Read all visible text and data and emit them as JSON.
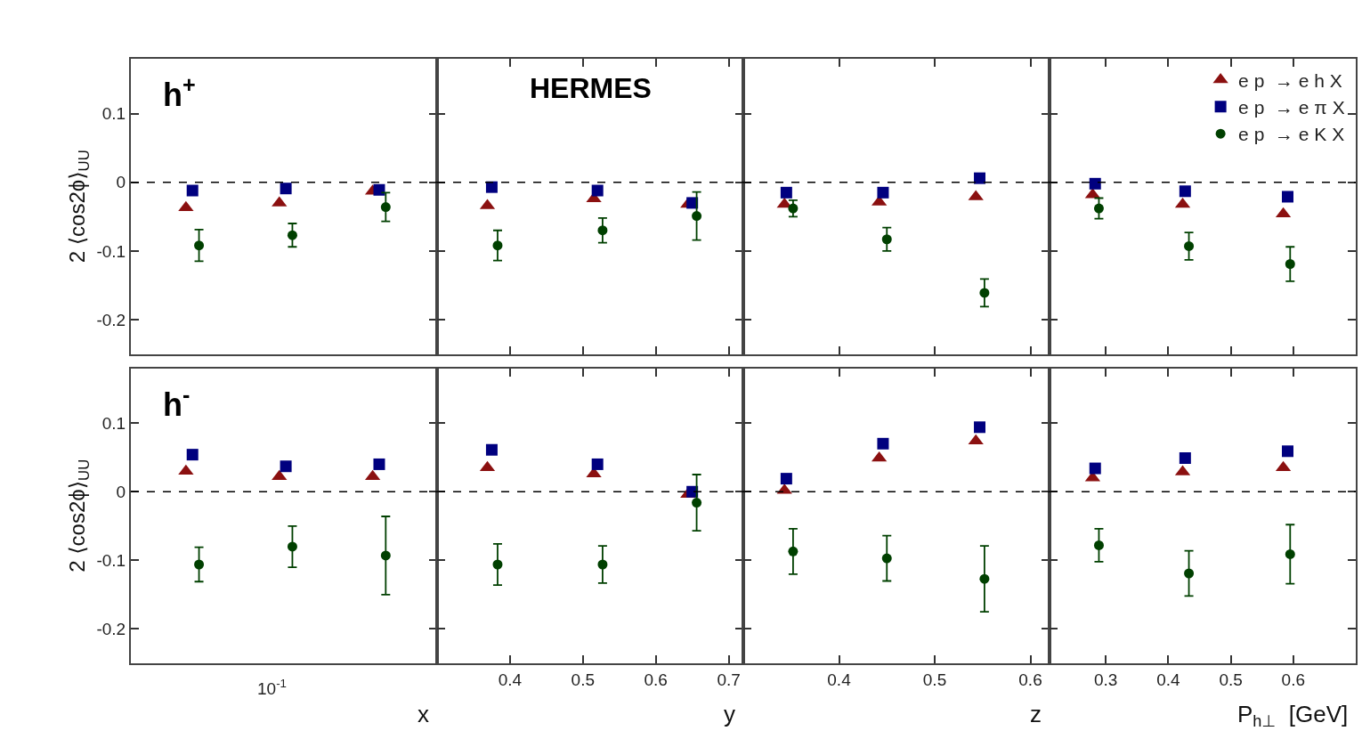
{
  "chart_data": [
    {
      "type": "scatter",
      "tick_labels": "y",
      "ylabel": "2 ⟨cos2ϕ⟩$_{UU}$",
      "annotations": [
        "h$^{+}$"
      ],
      "categories": [
        null,
        null,
        null
      ],
      "ylim": [
        -0.25,
        0.18
      ],
      "yticks": [
        -0.2,
        -0.1,
        0,
        0.1
      ],
      "ref_lines": [
        {
          "axis": "y",
          "value": 0,
          "color": "#000000",
          "line_style": "dashed"
        }
      ],
      "series": [
        {
          "color": "#8b1010",
          "marker": "triangle",
          "values": [
            -0.037,
            -0.03,
            -0.013
          ]
        },
        {
          "color": "#00007f",
          "marker": "square",
          "values": [
            -0.012,
            -0.009,
            -0.011
          ]
        },
        {
          "color": "#004000",
          "marker": "circle",
          "values": [
            -0.092,
            -0.077,
            -0.036
          ],
          "errors": [
            0.023,
            0.017,
            0.021
          ]
        }
      ]
    },
    {
      "type": "scatter",
      "tick_labels": false,
      "annotations": [
        "HERMES"
      ],
      "xlim": [
        0.3,
        0.72
      ],
      "xticks": [
        0.4,
        0.5,
        0.6,
        0.7
      ],
      "ylim": [
        -0.25,
        0.18
      ],
      "yticks": [
        -0.2,
        -0.1,
        0,
        0.1
      ],
      "ref_lines": [
        {
          "axis": "y",
          "value": 0,
          "color": "#000000",
          "line_style": "dashed"
        }
      ],
      "series": [
        {
          "color": "#8b1010",
          "marker": "triangle",
          "x": [
            0.369,
            0.515,
            0.644
          ],
          "values": [
            -0.034,
            -0.024,
            -0.032
          ]
        },
        {
          "color": "#00007f",
          "marker": "square",
          "x": [
            0.375,
            0.52,
            0.65
          ],
          "values": [
            -0.007,
            -0.012,
            -0.03
          ]
        },
        {
          "color": "#004000",
          "marker": "circle",
          "x": [
            0.383,
            0.527,
            0.656
          ],
          "values": [
            -0.092,
            -0.07,
            -0.049
          ],
          "errors": [
            0.022,
            0.018,
            0.035
          ]
        }
      ]
    },
    {
      "type": "scatter",
      "tick_labels": false,
      "xlim": [
        0.3,
        0.62
      ],
      "xticks": [
        0.4,
        0.5,
        0.6
      ],
      "ylim": [
        -0.25,
        0.18
      ],
      "yticks": [
        -0.2,
        -0.1,
        0,
        0.1
      ],
      "ref_lines": [
        {
          "axis": "y",
          "value": 0,
          "color": "#000000",
          "line_style": "dashed"
        }
      ],
      "series": [
        {
          "color": "#8b1010",
          "marker": "triangle",
          "x": [
            0.343,
            0.442,
            0.543
          ],
          "values": [
            -0.032,
            -0.029,
            -0.021
          ]
        },
        {
          "color": "#00007f",
          "marker": "square",
          "x": [
            0.345,
            0.446,
            0.547
          ],
          "values": [
            -0.015,
            -0.015,
            0.006
          ]
        },
        {
          "color": "#004000",
          "marker": "circle",
          "x": [
            0.352,
            0.45,
            0.552
          ],
          "values": [
            -0.038,
            -0.083,
            -0.161
          ],
          "errors": [
            0.012,
            0.017,
            0.02
          ]
        }
      ]
    },
    {
      "type": "scatter",
      "tick_labels": false,
      "legend": "top right",
      "xlim": [
        0.21,
        0.7
      ],
      "xticks": [
        0.3,
        0.4,
        0.5,
        0.6
      ],
      "ylim": [
        -0.25,
        0.18
      ],
      "yticks": [
        -0.2,
        -0.1,
        0,
        0.1
      ],
      "ref_lines": [
        {
          "axis": "y",
          "value": 0,
          "color": "#000000",
          "line_style": "dashed"
        }
      ],
      "series": [
        {
          "name": "e p  → e h X",
          "color": "#8b1010",
          "marker": "triangle",
          "x": [
            0.279,
            0.423,
            0.584
          ],
          "values": [
            -0.018,
            -0.032,
            -0.046
          ]
        },
        {
          "name": "e p  → e π X",
          "color": "#00007f",
          "marker": "square",
          "x": [
            0.283,
            0.427,
            0.591
          ],
          "values": [
            -0.002,
            -0.013,
            -0.021
          ]
        },
        {
          "name": "e p  → e K X",
          "color": "#004000",
          "marker": "circle",
          "x": [
            0.289,
            0.433,
            0.595
          ],
          "values": [
            -0.038,
            -0.093,
            -0.119
          ],
          "errors": [
            0.015,
            0.02,
            0.025
          ]
        }
      ]
    },
    {
      "type": "scatter",
      "xlabel": "x",
      "ylabel": "2 ⟨cos2ϕ⟩$_{UU}$",
      "annotations": [
        "h$^{-}$",
        "10$^{-1}$"
      ],
      "categories": [
        null,
        null,
        null
      ],
      "ylim": [
        -0.25,
        0.18
      ],
      "yticks": [
        -0.2,
        -0.1,
        0,
        0.1
      ],
      "ref_lines": [
        {
          "axis": "y",
          "value": 0,
          "color": "#000000",
          "line_style": "dashed"
        }
      ],
      "series": [
        {
          "color": "#8b1010",
          "marker": "triangle",
          "values": [
            0.03,
            0.022,
            0.022
          ]
        },
        {
          "color": "#00007f",
          "marker": "square",
          "values": [
            0.054,
            0.037,
            0.04
          ]
        },
        {
          "color": "#004000",
          "marker": "circle",
          "values": [
            -0.106,
            -0.08,
            -0.093
          ],
          "errors": [
            0.025,
            0.03,
            0.057
          ]
        }
      ]
    },
    {
      "type": "scatter",
      "tick_labels": "x",
      "xlabel": "y",
      "xlim": [
        0.3,
        0.72
      ],
      "xticks": [
        0.4,
        0.5,
        0.6,
        0.7
      ],
      "ylim": [
        -0.25,
        0.18
      ],
      "yticks": [
        -0.2,
        -0.1,
        0,
        0.1
      ],
      "ref_lines": [
        {
          "axis": "y",
          "value": 0,
          "color": "#000000",
          "line_style": "dashed"
        }
      ],
      "series": [
        {
          "color": "#8b1010",
          "marker": "triangle",
          "x": [
            0.369,
            0.515,
            0.644
          ],
          "values": [
            0.035,
            0.026,
            -0.004
          ]
        },
        {
          "color": "#00007f",
          "marker": "square",
          "x": [
            0.375,
            0.52,
            0.65
          ],
          "values": [
            0.061,
            0.04,
            0.0
          ]
        },
        {
          "color": "#004000",
          "marker": "circle",
          "x": [
            0.383,
            0.527,
            0.656
          ],
          "values": [
            -0.106,
            -0.106,
            -0.016
          ],
          "errors": [
            0.03,
            0.027,
            0.041
          ]
        }
      ]
    },
    {
      "type": "scatter",
      "tick_labels": "x",
      "xlabel": "z",
      "xlim": [
        0.3,
        0.62
      ],
      "xticks": [
        0.4,
        0.5,
        0.6
      ],
      "ylim": [
        -0.25,
        0.18
      ],
      "yticks": [
        -0.2,
        -0.1,
        0,
        0.1
      ],
      "ref_lines": [
        {
          "axis": "y",
          "value": 0,
          "color": "#000000",
          "line_style": "dashed"
        }
      ],
      "series": [
        {
          "color": "#8b1010",
          "marker": "triangle",
          "x": [
            0.343,
            0.442,
            0.543
          ],
          "values": [
            0.002,
            0.049,
            0.074
          ]
        },
        {
          "color": "#00007f",
          "marker": "square",
          "x": [
            0.345,
            0.446,
            0.547
          ],
          "values": [
            0.019,
            0.07,
            0.094
          ]
        },
        {
          "color": "#004000",
          "marker": "circle",
          "x": [
            0.352,
            0.45,
            0.552
          ],
          "values": [
            -0.087,
            -0.097,
            -0.127
          ],
          "errors": [
            0.033,
            0.033,
            0.048
          ]
        }
      ]
    },
    {
      "type": "scatter",
      "tick_labels": "x",
      "xlabel": "P$_{h⊥}$  [GeV]",
      "xlim": [
        0.21,
        0.7
      ],
      "xticks": [
        0.3,
        0.4,
        0.5,
        0.6
      ],
      "ylim": [
        -0.25,
        0.18
      ],
      "yticks": [
        -0.2,
        -0.1,
        0,
        0.1
      ],
      "ref_lines": [
        {
          "axis": "y",
          "value": 0,
          "color": "#000000",
          "line_style": "dashed"
        }
      ],
      "series": [
        {
          "color": "#8b1010",
          "marker": "triangle",
          "x": [
            0.279,
            0.423,
            0.584
          ],
          "values": [
            0.02,
            0.029,
            0.035
          ]
        },
        {
          "color": "#00007f",
          "marker": "square",
          "x": [
            0.283,
            0.427,
            0.591
          ],
          "values": [
            0.034,
            0.049,
            0.059
          ]
        },
        {
          "color": "#004000",
          "marker": "circle",
          "x": [
            0.289,
            0.433,
            0.595
          ],
          "values": [
            -0.078,
            -0.119,
            -0.091
          ],
          "errors": [
            0.024,
            0.033,
            0.043
          ]
        }
      ]
    }
  ]
}
